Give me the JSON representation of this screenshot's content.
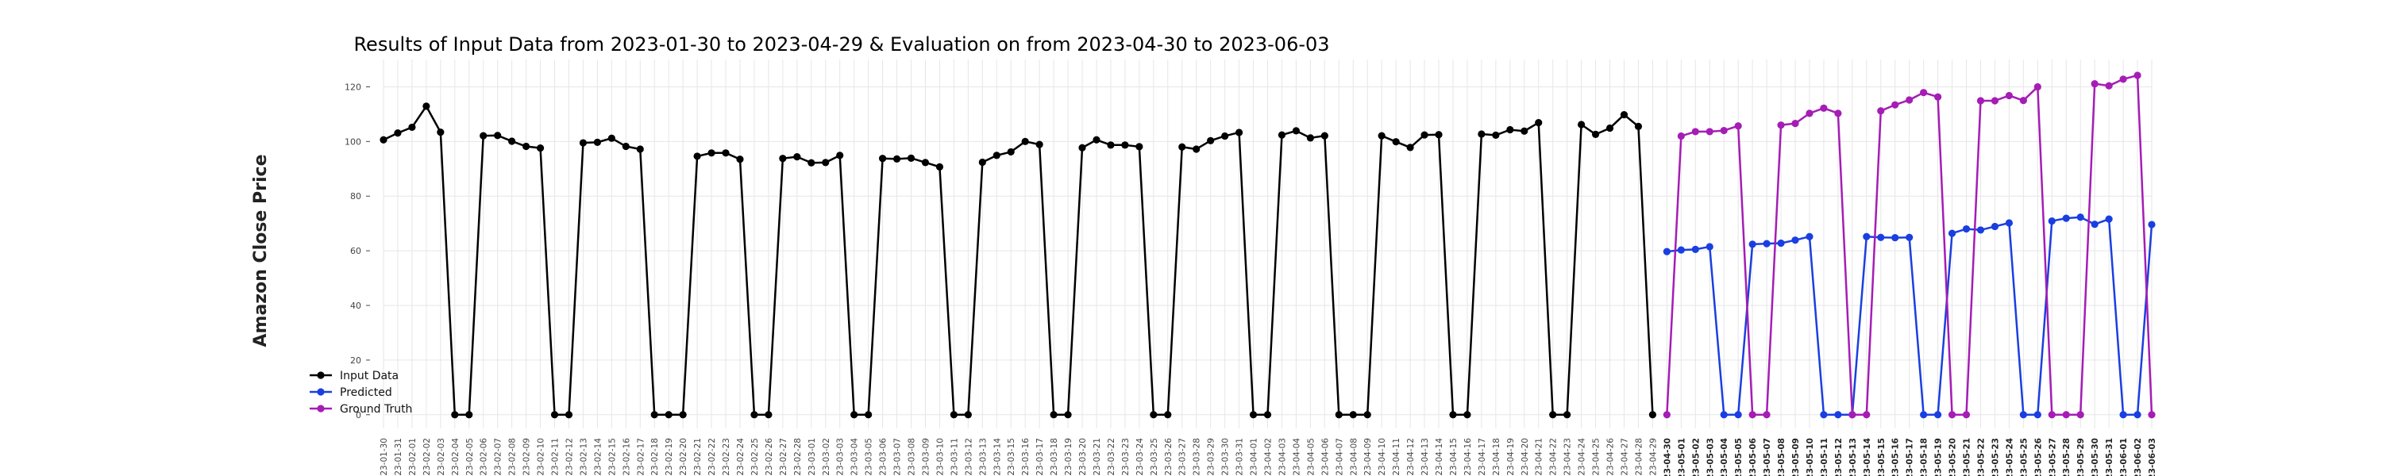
{
  "chart_data": {
    "type": "line",
    "title": "Results of Input Data from 2023-01-30 to 2023-04-29 & Evaluation on from 2023-04-30 to 2023-06-03",
    "xlabel": "",
    "ylabel": "Amazon Close Price",
    "ylim": [
      -5,
      130
    ],
    "yticks": [
      0,
      20,
      40,
      60,
      80,
      100,
      120
    ],
    "grid": true,
    "legend_position": "lower-left",
    "colors": {
      "input": "#000000",
      "predicted": "#1a3fe0",
      "truth": "#a51db5"
    },
    "x_input": [
      "2023-01-30",
      "2023-01-31",
      "2023-02-01",
      "2023-02-02",
      "2023-02-03",
      "2023-02-04",
      "2023-02-05",
      "2023-02-06",
      "2023-02-07",
      "2023-02-08",
      "2023-02-09",
      "2023-02-10",
      "2023-02-11",
      "2023-02-12",
      "2023-02-13",
      "2023-02-14",
      "2023-02-15",
      "2023-02-16",
      "2023-02-17",
      "2023-02-18",
      "2023-02-19",
      "2023-02-20",
      "2023-02-21",
      "2023-02-22",
      "2023-02-23",
      "2023-02-24",
      "2023-02-25",
      "2023-02-26",
      "2023-02-27",
      "2023-02-28",
      "2023-03-01",
      "2023-03-02",
      "2023-03-03",
      "2023-03-04",
      "2023-03-05",
      "2023-03-06",
      "2023-03-07",
      "2023-03-08",
      "2023-03-09",
      "2023-03-10",
      "2023-03-11",
      "2023-03-12",
      "2023-03-13",
      "2023-03-14",
      "2023-03-15",
      "2023-03-16",
      "2023-03-17",
      "2023-03-18",
      "2023-03-19",
      "2023-03-20",
      "2023-03-21",
      "2023-03-22",
      "2023-03-23",
      "2023-03-24",
      "2023-03-25",
      "2023-03-26",
      "2023-03-27",
      "2023-03-28",
      "2023-03-29",
      "2023-03-30",
      "2023-03-31",
      "2023-04-01",
      "2023-04-02",
      "2023-04-03",
      "2023-04-04",
      "2023-04-05",
      "2023-04-06",
      "2023-04-07",
      "2023-04-08",
      "2023-04-09",
      "2023-04-10",
      "2023-04-11",
      "2023-04-12",
      "2023-04-13",
      "2023-04-14",
      "2023-04-15",
      "2023-04-16",
      "2023-04-17",
      "2023-04-18",
      "2023-04-19",
      "2023-04-20",
      "2023-04-21",
      "2023-04-22",
      "2023-04-23",
      "2023-04-24",
      "2023-04-25",
      "2023-04-26",
      "2023-04-27",
      "2023-04-28",
      "2023-04-29"
    ],
    "x_eval": [
      "2023-04-30",
      "2023-05-01",
      "2023-05-02",
      "2023-05-03",
      "2023-05-04",
      "2023-05-05",
      "2023-05-06",
      "2023-05-07",
      "2023-05-08",
      "2023-05-09",
      "2023-05-10",
      "2023-05-11",
      "2023-05-12",
      "2023-05-13",
      "2023-05-14",
      "2023-05-15",
      "2023-05-16",
      "2023-05-17",
      "2023-05-18",
      "2023-05-19",
      "2023-05-20",
      "2023-05-21",
      "2023-05-22",
      "2023-05-23",
      "2023-05-24",
      "2023-05-25",
      "2023-05-26",
      "2023-05-27",
      "2023-05-28",
      "2023-05-29",
      "2023-05-30",
      "2023-05-31",
      "2023-06-01",
      "2023-06-02",
      "2023-06-03"
    ],
    "tick_labels": [
      "23-01-30",
      "23-01-31",
      "23-02-01",
      "23-02-02",
      "23-02-03",
      "23-02-04",
      "23-02-05",
      "23-02-06",
      "23-02-07",
      "23-02-08",
      "23-02-09",
      "23-02-10",
      "23-02-11",
      "23-02-12",
      "23-02-13",
      "23-02-14",
      "23-02-15",
      "23-02-16",
      "23-02-17",
      "23-02-18",
      "23-02-19",
      "23-02-20",
      "23-02-21",
      "23-02-22",
      "23-02-23",
      "23-02-24",
      "23-02-25",
      "23-02-26",
      "23-02-27",
      "23-02-28",
      "23-03-01",
      "23-03-02",
      "23-03-03",
      "23-03-04",
      "23-03-05",
      "23-03-06",
      "23-03-07",
      "23-03-08",
      "23-03-09",
      "23-03-10",
      "23-03-11",
      "23-03-12",
      "23-03-13",
      "23-03-14",
      "23-03-15",
      "23-03-16",
      "23-03-17",
      "23-03-18",
      "23-03-19",
      "23-03-20",
      "23-03-21",
      "23-03-22",
      "23-03-23",
      "23-03-24",
      "23-03-25",
      "23-03-26",
      "23-03-27",
      "23-03-28",
      "23-03-29",
      "23-03-30",
      "23-03-31",
      "23-04-01",
      "23-04-02",
      "23-04-03",
      "23-04-04",
      "23-04-05",
      "23-04-06",
      "23-04-07",
      "23-04-08",
      "23-04-09",
      "23-04-10",
      "23-04-11",
      "23-04-12",
      "23-04-13",
      "23-04-14",
      "23-04-15",
      "23-04-16",
      "23-04-17",
      "23-04-18",
      "23-04-19",
      "23-04-20",
      "23-04-21",
      "23-04-22",
      "23-04-23",
      "23-04-24",
      "23-04-25",
      "23-04-26",
      "23-04-27",
      "23-04-28",
      "23-04-29",
      "23-04-30",
      "23-05-01",
      "23-05-02",
      "23-05-03",
      "23-05-04",
      "23-05-05",
      "23-05-06",
      "23-05-07",
      "23-05-08",
      "23-05-09",
      "23-05-10",
      "23-05-11",
      "23-05-12",
      "23-05-13",
      "23-05-14",
      "23-05-15",
      "23-05-16",
      "23-05-17",
      "23-05-18",
      "23-05-19",
      "23-05-20",
      "23-05-21",
      "23-05-22",
      "23-05-23",
      "23-05-24",
      "23-05-25",
      "23-05-26",
      "23-05-27",
      "23-05-28",
      "23-05-29",
      "23-05-30",
      "23-05-31",
      "23-06-01",
      "23-06-02",
      "23-06-03"
    ],
    "series": [
      {
        "name": "Input Data",
        "values": [
          100.6,
          103.1,
          105.2,
          112.9,
          103.4,
          0,
          0,
          102.1,
          102.2,
          100.1,
          98.2,
          97.6,
          0,
          0,
          99.5,
          99.7,
          101.2,
          98.2,
          97.2,
          0,
          0,
          0,
          94.6,
          95.8,
          95.8,
          93.5,
          0,
          0,
          93.8,
          94.4,
          92.2,
          92.3,
          94.9,
          0,
          0,
          93.8,
          93.6,
          93.9,
          92.3,
          90.7,
          0,
          0,
          92.4,
          94.9,
          96.2,
          100.0,
          98.9,
          0,
          0,
          97.7,
          100.6,
          98.7,
          98.7,
          98.1,
          0,
          0,
          98.0,
          97.2,
          100.3,
          102.0,
          103.3,
          0,
          0,
          102.4,
          103.9,
          101.3,
          102.1,
          0,
          0,
          0,
          102.1,
          99.9,
          97.8,
          102.4,
          102.5,
          0,
          0,
          102.7,
          102.3,
          104.3,
          103.8,
          106.9,
          0,
          0,
          106.2,
          102.6,
          104.9,
          109.8,
          105.5,
          0
        ]
      },
      {
        "name": "Predicted",
        "values": [
          59.7,
          60.3,
          60.5,
          61.5,
          0,
          0,
          62.4,
          62.6,
          62.8,
          63.9,
          65.2,
          0,
          0,
          0,
          65.2,
          64.9,
          64.8,
          64.9,
          0,
          0,
          66.4,
          68.0,
          67.6,
          68.9,
          70.2,
          0,
          0,
          70.9,
          71.9,
          72.3,
          69.7,
          71.6,
          0,
          0,
          69.6
        ]
      },
      {
        "name": "Ground Truth",
        "values": [
          0,
          102.0,
          103.6,
          103.6,
          104.0,
          105.7,
          0,
          0,
          106.0,
          106.6,
          110.3,
          112.2,
          110.3,
          0,
          0,
          111.2,
          113.4,
          115.2,
          117.9,
          116.3,
          0,
          0,
          114.9,
          114.9,
          116.8,
          115.0,
          120.0,
          0,
          0,
          0,
          121.1,
          120.4,
          122.8,
          124.2,
          0
        ]
      }
    ]
  }
}
